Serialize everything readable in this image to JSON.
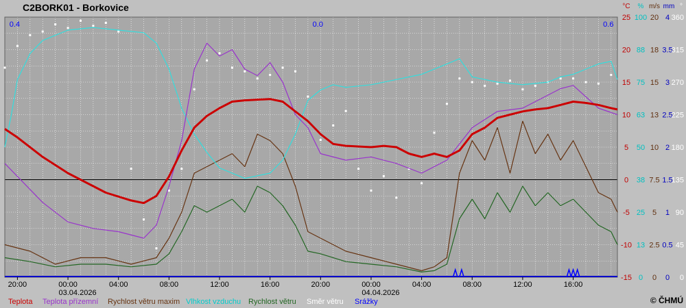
{
  "chart_data": {
    "type": "line",
    "title": "C2BORK01 - Borkovice",
    "copyright": "© ČHMÚ",
    "x_range": [
      "2026-04-02T19:00",
      "2026-04-04T19:30"
    ],
    "x_ticks": [
      {
        "t": "2026-04-02T20:00",
        "label": "20:00",
        "date": ""
      },
      {
        "t": "2026-04-03T00:00",
        "label": "00:00",
        "date": "03.04.2026"
      },
      {
        "t": "2026-04-03T04:00",
        "label": "04:00",
        "date": ""
      },
      {
        "t": "2026-04-03T08:00",
        "label": "08:00",
        "date": ""
      },
      {
        "t": "2026-04-03T12:00",
        "label": "12:00",
        "date": ""
      },
      {
        "t": "2026-04-03T16:00",
        "label": "16:00",
        "date": ""
      },
      {
        "t": "2026-04-03T20:00",
        "label": "20:00",
        "date": ""
      },
      {
        "t": "2026-04-04T00:00",
        "label": "00:00",
        "date": "04.04.2026"
      },
      {
        "t": "2026-04-04T04:00",
        "label": "04:00",
        "date": ""
      },
      {
        "t": "2026-04-04T08:00",
        "label": "08:00",
        "date": ""
      },
      {
        "t": "2026-04-04T12:00",
        "label": "12:00",
        "date": ""
      },
      {
        "t": "2026-04-04T16:00",
        "label": "16:00",
        "date": ""
      }
    ],
    "y_axes": [
      {
        "unit": "°C",
        "color": "#c00000",
        "ticks": [
          "25",
          "20",
          "15",
          "10",
          "5",
          "0",
          "-5",
          "-10",
          "-15"
        ]
      },
      {
        "unit": "%",
        "color": "#00c0c0",
        "ticks": [
          "100",
          "88",
          "75",
          "63",
          "50",
          "38",
          "25",
          "13",
          "0"
        ]
      },
      {
        "unit": "m/s",
        "color": "#603010",
        "ticks": [
          "20",
          "18",
          "15",
          "13",
          "10",
          "7.5",
          "5",
          "2.5",
          "0"
        ]
      },
      {
        "unit": "mm",
        "color": "#0000c0",
        "ticks": [
          "4",
          "3.5",
          "3",
          "2.5",
          "2",
          "1.5",
          "1",
          "0.5",
          "0"
        ]
      },
      {
        "unit": "°",
        "color": "#ffffff",
        "ticks": [
          "360",
          "315",
          "270",
          "225",
          "180",
          "135",
          "90",
          "45",
          "0"
        ]
      }
    ],
    "ylim_temperature": [
      -15,
      25
    ],
    "grid": true,
    "zero_line": 0,
    "daily_precip_totals": [
      {
        "t": "2026-04-02T20:00",
        "label": "0.4"
      },
      {
        "t": "2026-04-03T20:00",
        "label": "0.0"
      },
      {
        "t": "2026-04-04T19:00",
        "label": "0.6"
      }
    ],
    "series": [
      {
        "name": "Teplota",
        "unit": "°C",
        "color": "#cc0000",
        "x": [
          "2026-04-02T19:00",
          "2026-04-02T20:00",
          "2026-04-02T22:00",
          "2026-04-03T00:00",
          "2026-04-03T02:00",
          "2026-04-03T03:00",
          "2026-04-03T05:00",
          "2026-04-03T06:00",
          "2026-04-03T07:00",
          "2026-04-03T08:00",
          "2026-04-03T09:00",
          "2026-04-03T10:00",
          "2026-04-03T11:00",
          "2026-04-03T12:00",
          "2026-04-03T13:00",
          "2026-04-03T14:00",
          "2026-04-03T15:00",
          "2026-04-03T16:00",
          "2026-04-03T17:00",
          "2026-04-03T18:00",
          "2026-04-03T19:00",
          "2026-04-03T20:00",
          "2026-04-03T21:00",
          "2026-04-03T22:00",
          "2026-04-04T00:00",
          "2026-04-04T01:00",
          "2026-04-04T02:00",
          "2026-04-04T03:00",
          "2026-04-04T04:00",
          "2026-04-04T05:00",
          "2026-04-04T06:00",
          "2026-04-04T07:00",
          "2026-04-04T08:00",
          "2026-04-04T09:00",
          "2026-04-04T10:00",
          "2026-04-04T11:00",
          "2026-04-04T12:00",
          "2026-04-04T13:00",
          "2026-04-04T14:00",
          "2026-04-04T15:00",
          "2026-04-04T16:00",
          "2026-04-04T17:00",
          "2026-04-04T18:00",
          "2026-04-04T19:00",
          "2026-04-04T19:30"
        ],
        "y": [
          7.8,
          6.5,
          3.5,
          1.0,
          -1.0,
          -2.0,
          -3.2,
          -3.6,
          -2.5,
          0.5,
          4.5,
          8.0,
          9.8,
          11.0,
          12.0,
          12.2,
          12.3,
          12.4,
          12.0,
          10.5,
          9.0,
          7.0,
          5.5,
          5.2,
          5.0,
          5.2,
          5.0,
          4.0,
          3.5,
          4.0,
          3.5,
          4.5,
          7.0,
          8.0,
          9.5,
          10.0,
          10.5,
          10.8,
          11.0,
          11.5,
          12.0,
          11.8,
          11.5,
          11.0,
          10.8
        ]
      },
      {
        "name": "Teplota přízemní",
        "unit": "°C",
        "color": "#9933cc",
        "x": [
          "2026-04-02T19:00",
          "2026-04-02T20:00",
          "2026-04-02T22:00",
          "2026-04-03T00:00",
          "2026-04-03T02:00",
          "2026-04-03T04:00",
          "2026-04-03T06:00",
          "2026-04-03T07:00",
          "2026-04-03T08:00",
          "2026-04-03T09:00",
          "2026-04-03T10:00",
          "2026-04-03T11:00",
          "2026-04-03T12:00",
          "2026-04-03T13:00",
          "2026-04-03T14:00",
          "2026-04-03T15:00",
          "2026-04-03T16:00",
          "2026-04-03T17:00",
          "2026-04-03T18:00",
          "2026-04-03T19:00",
          "2026-04-03T20:00",
          "2026-04-03T22:00",
          "2026-04-04T00:00",
          "2026-04-04T02:00",
          "2026-04-04T04:00",
          "2026-04-04T06:00",
          "2026-04-04T07:00",
          "2026-04-04T08:00",
          "2026-04-04T10:00",
          "2026-04-04T12:00",
          "2026-04-04T14:00",
          "2026-04-04T15:00",
          "2026-04-04T16:00",
          "2026-04-04T18:00",
          "2026-04-04T19:30"
        ],
        "y": [
          2.5,
          0.5,
          -3.5,
          -6.5,
          -7.5,
          -8.0,
          -9.0,
          -7.0,
          -1.0,
          6.0,
          17.0,
          21.0,
          19.0,
          20.0,
          17.0,
          16.0,
          18.0,
          15.0,
          10.0,
          8.0,
          4.0,
          3.0,
          3.5,
          2.5,
          1.0,
          3.0,
          5.5,
          8.0,
          10.5,
          11.0,
          13.0,
          14.0,
          14.5,
          11.0,
          10.0
        ]
      },
      {
        "name": "Rychlost větru maxim",
        "unit": "m/s",
        "color": "#663311",
        "x": [
          "2026-04-02T19:00",
          "2026-04-02T21:00",
          "2026-04-02T23:00",
          "2026-04-03T01:00",
          "2026-04-03T03:00",
          "2026-04-03T05:00",
          "2026-04-03T07:00",
          "2026-04-03T08:00",
          "2026-04-03T09:00",
          "2026-04-03T10:00",
          "2026-04-03T11:00",
          "2026-04-03T12:00",
          "2026-04-03T13:00",
          "2026-04-03T14:00",
          "2026-04-03T15:00",
          "2026-04-03T16:00",
          "2026-04-03T17:00",
          "2026-04-03T18:00",
          "2026-04-03T19:00",
          "2026-04-03T20:00",
          "2026-04-03T22:00",
          "2026-04-04T00:00",
          "2026-04-04T02:00",
          "2026-04-04T04:00",
          "2026-04-04T05:00",
          "2026-04-04T06:00",
          "2026-04-04T07:00",
          "2026-04-04T08:00",
          "2026-04-04T09:00",
          "2026-04-04T10:00",
          "2026-04-04T11:00",
          "2026-04-04T12:00",
          "2026-04-04T13:00",
          "2026-04-04T14:00",
          "2026-04-04T15:00",
          "2026-04-04T16:00",
          "2026-04-04T17:00",
          "2026-04-04T18:00",
          "2026-04-04T19:00",
          "2026-04-04T19:30"
        ],
        "y": [
          2.5,
          2.0,
          1.0,
          1.5,
          1.5,
          1.0,
          1.5,
          3.0,
          5.0,
          8.0,
          8.5,
          9.0,
          9.5,
          8.5,
          11.0,
          10.5,
          9.5,
          7.0,
          3.5,
          3.0,
          2.0,
          1.5,
          1.0,
          0.5,
          0.8,
          1.5,
          8.0,
          10.5,
          9.0,
          11.5,
          8.0,
          12.0,
          9.5,
          11.0,
          9.0,
          10.5,
          8.5,
          6.5,
          6.0,
          5.0
        ]
      },
      {
        "name": "Vlhkost vzduchu",
        "unit": "%",
        "color": "#33dddd",
        "x": [
          "2026-04-02T19:00",
          "2026-04-02T19:30",
          "2026-04-02T20:00",
          "2026-04-02T21:00",
          "2026-04-02T22:00",
          "2026-04-02T23:00",
          "2026-04-03T00:00",
          "2026-04-03T02:00",
          "2026-04-03T04:00",
          "2026-04-03T06:00",
          "2026-04-03T07:00",
          "2026-04-03T08:00",
          "2026-04-03T09:00",
          "2026-04-03T10:00",
          "2026-04-03T11:00",
          "2026-04-03T12:00",
          "2026-04-03T13:00",
          "2026-04-03T14:00",
          "2026-04-03T15:00",
          "2026-04-03T16:00",
          "2026-04-03T17:00",
          "2026-04-03T18:00",
          "2026-04-03T19:00",
          "2026-04-03T20:00",
          "2026-04-03T21:00",
          "2026-04-03T22:00",
          "2026-04-04T00:00",
          "2026-04-04T02:00",
          "2026-04-04T04:00",
          "2026-04-04T06:00",
          "2026-04-04T07:00",
          "2026-04-04T08:00",
          "2026-04-04T09:00",
          "2026-04-04T10:00",
          "2026-04-04T12:00",
          "2026-04-04T14:00",
          "2026-04-04T15:00",
          "2026-04-04T16:00",
          "2026-04-04T17:00",
          "2026-04-04T18:00",
          "2026-04-04T19:00",
          "2026-04-04T19:30"
        ],
        "y": [
          50,
          62,
          76,
          86,
          91,
          93,
          95,
          96,
          95,
          94,
          90,
          80,
          65,
          55,
          48,
          42,
          40,
          38,
          39,
          40,
          45,
          55,
          68,
          72,
          74,
          73,
          74,
          76,
          78,
          82,
          84,
          77,
          76,
          75,
          74,
          75,
          77,
          78,
          80,
          82,
          83,
          76
        ]
      },
      {
        "name": "Rychlost větru",
        "unit": "m/s",
        "color": "#226622",
        "x": [
          "2026-04-02T19:00",
          "2026-04-02T21:00",
          "2026-04-02T23:00",
          "2026-04-03T01:00",
          "2026-04-03T03:00",
          "2026-04-03T05:00",
          "2026-04-03T07:00",
          "2026-04-03T08:00",
          "2026-04-03T09:00",
          "2026-04-03T10:00",
          "2026-04-03T11:00",
          "2026-04-03T12:00",
          "2026-04-03T13:00",
          "2026-04-03T14:00",
          "2026-04-03T15:00",
          "2026-04-03T16:00",
          "2026-04-03T17:00",
          "2026-04-03T18:00",
          "2026-04-03T19:00",
          "2026-04-03T20:00",
          "2026-04-03T22:00",
          "2026-04-04T00:00",
          "2026-04-04T02:00",
          "2026-04-04T04:00",
          "2026-04-04T05:00",
          "2026-04-04T06:00",
          "2026-04-04T07:00",
          "2026-04-04T08:00",
          "2026-04-04T09:00",
          "2026-04-04T10:00",
          "2026-04-04T11:00",
          "2026-04-04T12:00",
          "2026-04-04T13:00",
          "2026-04-04T14:00",
          "2026-04-04T15:00",
          "2026-04-04T16:00",
          "2026-04-04T17:00",
          "2026-04-04T18:00",
          "2026-04-04T19:00",
          "2026-04-04T19:30"
        ],
        "y": [
          1.5,
          1.2,
          0.8,
          1.0,
          1.0,
          0.8,
          1.0,
          1.8,
          3.5,
          5.5,
          5.0,
          5.5,
          6.0,
          5.0,
          7.0,
          6.5,
          5.5,
          4.0,
          2.0,
          1.8,
          1.2,
          1.0,
          0.8,
          0.4,
          0.5,
          1.0,
          4.5,
          6.0,
          4.5,
          6.5,
          5.0,
          7.0,
          5.5,
          6.5,
          5.5,
          6.0,
          5.0,
          4.0,
          3.5,
          2.5
        ]
      },
      {
        "name": "Směr větru",
        "unit": "°",
        "color": "#ffffff",
        "style": "dots",
        "x": [
          "2026-04-02T19:00",
          "2026-04-02T20:00",
          "2026-04-02T21:00",
          "2026-04-02T22:00",
          "2026-04-02T23:00",
          "2026-04-03T00:00",
          "2026-04-03T01:00",
          "2026-04-03T02:00",
          "2026-04-03T03:00",
          "2026-04-03T04:00",
          "2026-04-03T05:00",
          "2026-04-03T06:00",
          "2026-04-03T07:00",
          "2026-04-03T08:00",
          "2026-04-03T09:00",
          "2026-04-03T10:00",
          "2026-04-03T11:00",
          "2026-04-03T12:00",
          "2026-04-03T13:00",
          "2026-04-03T14:00",
          "2026-04-03T15:00",
          "2026-04-03T16:00",
          "2026-04-03T17:00",
          "2026-04-03T18:00",
          "2026-04-03T19:00",
          "2026-04-03T20:00",
          "2026-04-03T21:00",
          "2026-04-03T22:00",
          "2026-04-03T23:00",
          "2026-04-04T00:00",
          "2026-04-04T01:00",
          "2026-04-04T02:00",
          "2026-04-04T03:00",
          "2026-04-04T04:00",
          "2026-04-04T05:00",
          "2026-04-04T06:00",
          "2026-04-04T07:00",
          "2026-04-04T08:00",
          "2026-04-04T09:00",
          "2026-04-04T10:00",
          "2026-04-04T11:00",
          "2026-04-04T12:00",
          "2026-04-04T13:00",
          "2026-04-04T14:00",
          "2026-04-04T15:00",
          "2026-04-04T16:00",
          "2026-04-04T17:00",
          "2026-04-04T18:00",
          "2026-04-04T19:00"
        ],
        "y": [
          290,
          320,
          335,
          340,
          350,
          345,
          355,
          348,
          352,
          340,
          150,
          80,
          40,
          120,
          150,
          260,
          300,
          310,
          290,
          285,
          275,
          280,
          290,
          285,
          250,
          190,
          210,
          230,
          150,
          120,
          140,
          110,
          150,
          130,
          200,
          240,
          275,
          270,
          265,
          268,
          272,
          260,
          265,
          270,
          275,
          275,
          270,
          268,
          280
        ]
      }
    ],
    "precipitation_marks": [
      "2026-04-04T06:40",
      "2026-04-04T07:10",
      "2026-04-04T15:40",
      "2026-04-04T16:00",
      "2026-04-04T16:20"
    ],
    "legend": [
      {
        "label": "Teplota",
        "color": "#cc0000"
      },
      {
        "label": "Teplota přízemní",
        "color": "#9933cc"
      },
      {
        "label": "Rychlost větru maxim",
        "color": "#663311"
      },
      {
        "label": "Vlhkost vzduchu",
        "color": "#00cccc"
      },
      {
        "label": "Rychlost větru",
        "color": "#226622"
      },
      {
        "label": "Směr  větru",
        "color": "#ffffff"
      },
      {
        "label": "Srážky",
        "color": "#0000ff"
      }
    ]
  }
}
